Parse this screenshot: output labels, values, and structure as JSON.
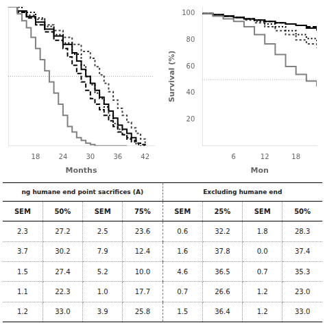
{
  "chart_data": [
    {
      "type": "step",
      "xlabel": "Months",
      "xlim": [
        12,
        44
      ],
      "ylim": [
        0,
        100
      ],
      "xticks": [
        18,
        24,
        30,
        36,
        42
      ],
      "tick_labels": "x",
      "grid": false,
      "reference_line": 50,
      "series": [
        {
          "color": "#808080",
          "line_style": "solid",
          "x": [
            12,
            14,
            15,
            16,
            17,
            18,
            19,
            20,
            21,
            22,
            23,
            24,
            25,
            26,
            27,
            28,
            29,
            30,
            31,
            32,
            33,
            34,
            35,
            36,
            37,
            38
          ],
          "values": [
            100,
            95,
            90,
            85,
            78,
            70,
            62,
            54,
            46,
            38,
            30,
            22,
            14,
            10,
            6,
            4,
            2,
            1,
            0,
            0,
            0,
            0,
            0,
            0,
            0,
            0
          ]
        },
        {
          "color": "#000000",
          "line_style": "dashed",
          "x": [
            12,
            14,
            16,
            18,
            20,
            22,
            24,
            25,
            26,
            27,
            28,
            29,
            30,
            31,
            32,
            33,
            34,
            35,
            36,
            37,
            38,
            39,
            40,
            41,
            42
          ],
          "values": [
            100,
            96,
            92,
            87,
            82,
            76,
            70,
            64,
            58,
            52,
            46,
            40,
            34,
            30,
            26,
            22,
            18,
            14,
            10,
            8,
            6,
            4,
            2,
            1,
            0
          ]
        },
        {
          "color": "#000000",
          "line_style": "solid",
          "x": [
            12,
            14,
            16,
            18,
            20,
            22,
            24,
            26,
            27,
            28,
            29,
            30,
            31,
            32,
            33,
            34,
            35,
            36,
            37,
            38,
            39,
            40
          ],
          "values": [
            100,
            97,
            93,
            89,
            84,
            79,
            73,
            67,
            61,
            55,
            50,
            45,
            40,
            35,
            30,
            25,
            20,
            15,
            12,
            9,
            6,
            3
          ]
        },
        {
          "color": "#000000",
          "line_style": "dotted",
          "x": [
            12,
            15,
            18,
            20,
            22,
            24,
            26,
            28,
            29,
            30,
            31,
            32,
            33,
            34,
            35,
            36,
            37,
            38,
            39,
            40,
            41,
            42
          ],
          "values": [
            100,
            96,
            92,
            86,
            80,
            74,
            66,
            58,
            50,
            44,
            38,
            34,
            28,
            22,
            16,
            12,
            8,
            5,
            3,
            1,
            0,
            0
          ]
        },
        {
          "color": "#404040",
          "line_style": "shortdash",
          "x": [
            12,
            14,
            16,
            18,
            20,
            22,
            24,
            26,
            28,
            30,
            31,
            32,
            33,
            34,
            35,
            36,
            37,
            38,
            39,
            40,
            41,
            42
          ],
          "values": [
            100,
            97,
            94,
            91,
            87,
            83,
            78,
            73,
            68,
            63,
            57,
            51,
            45,
            39,
            33,
            27,
            22,
            17,
            13,
            9,
            5,
            2
          ]
        }
      ]
    },
    {
      "type": "step",
      "xlabel": "Mon",
      "ylabel": "Survival (%)",
      "xlim": [
        0,
        22
      ],
      "ylim": [
        0,
        105
      ],
      "xticks": [
        6,
        12,
        18
      ],
      "yticks": [
        20,
        40,
        60,
        80,
        100
      ],
      "grid": false,
      "reference_line": 50,
      "series": [
        {
          "color": "#808080",
          "line_style": "solid",
          "x": [
            0,
            2,
            4,
            6,
            8,
            10,
            12,
            14,
            16,
            18,
            20,
            22
          ],
          "values": [
            100,
            98,
            96,
            94,
            90,
            84,
            77,
            69,
            60,
            54,
            49,
            45
          ]
        },
        {
          "color": "#000000",
          "line_style": "dashed",
          "x": [
            0,
            2,
            4,
            6,
            8,
            10,
            12,
            14,
            16,
            18,
            20,
            22
          ],
          "values": [
            100,
            99,
            98,
            97,
            96,
            95,
            94,
            93,
            92,
            91,
            90,
            89
          ]
        },
        {
          "color": "#000000",
          "line_style": "solid",
          "x": [
            0,
            2,
            4,
            6,
            8,
            10,
            12,
            14,
            16,
            18,
            20,
            22
          ],
          "values": [
            100,
            99,
            98,
            97,
            96,
            95,
            94,
            93,
            92,
            91,
            89,
            87
          ]
        },
        {
          "color": "#000000",
          "line_style": "dotted",
          "x": [
            0,
            2,
            4,
            6,
            8,
            10,
            12,
            14,
            16,
            18,
            20,
            22
          ],
          "values": [
            100,
            99,
            98,
            97,
            96,
            94,
            92,
            90,
            87,
            84,
            81,
            78
          ]
        },
        {
          "color": "#404040",
          "line_style": "shortdash",
          "x": [
            0,
            2,
            4,
            6,
            8,
            10,
            12,
            14,
            16,
            18,
            20,
            22
          ],
          "values": [
            100,
            99,
            98,
            97,
            95,
            93,
            90,
            87,
            84,
            80,
            77,
            74
          ]
        }
      ]
    },
    {
      "type": "table",
      "headers": [
        "ng humane end point sacrifices (A)",
        "Excluding humane end"
      ],
      "categories": [
        "SEM",
        "50%",
        "SEM",
        "75%",
        "SEM",
        "25%",
        "SEM",
        "50%"
      ],
      "values": [
        [
          2.3,
          27.2,
          2.5,
          23.6,
          0.6,
          32.2,
          1.8,
          28.3
        ],
        [
          3.7,
          30.2,
          7.9,
          12.4,
          1.6,
          37.8,
          0.0,
          37.4
        ],
        [
          1.5,
          27.4,
          5.2,
          10.0,
          4.6,
          36.5,
          0.7,
          35.3
        ],
        [
          1.1,
          22.3,
          1.0,
          17.7,
          0.7,
          26.6,
          1.2,
          23.0
        ],
        [
          1.2,
          33.0,
          3.9,
          25.8,
          1.5,
          36.4,
          1.2,
          33.0
        ]
      ],
      "value_labels": [
        [
          "2.3",
          "27.2",
          "2.5",
          "23.6",
          "0.6",
          "32.2",
          "1.8",
          "28.3"
        ],
        [
          "3.7",
          "30.2",
          "7.9",
          "12.4",
          "1.6",
          "37.8",
          "0.0",
          "37.4"
        ],
        [
          "1.5",
          "27.4",
          "5.2",
          "10.0",
          "4.6",
          "36.5",
          "0.7",
          "35.3"
        ],
        [
          "1.1",
          "22.3",
          "1.0",
          "17.7",
          "0.7",
          "26.6",
          "1.2",
          "23.0"
        ],
        [
          "1.2",
          "33.0",
          "3.9",
          "25.8",
          "1.5",
          "36.4",
          "1.2",
          "33.0"
        ]
      ]
    }
  ]
}
